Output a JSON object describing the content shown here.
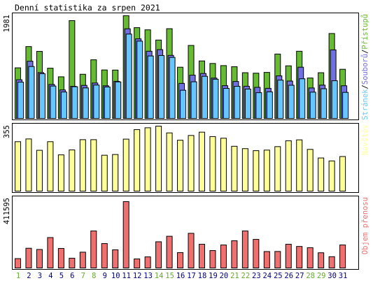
{
  "chart_data": {
    "title": "Denní statistika za srpen 2021",
    "days": [
      "1",
      "2",
      "3",
      "4",
      "5",
      "6",
      "7",
      "8",
      "9",
      "10",
      "11",
      "12",
      "13",
      "14",
      "15",
      "16",
      "17",
      "18",
      "19",
      "20",
      "21",
      "22",
      "23",
      "24",
      "25",
      "26",
      "27",
      "28",
      "29",
      "30",
      "31"
    ],
    "weekend_days": [
      1,
      7,
      8,
      14,
      15,
      21,
      22,
      28,
      29
    ],
    "colors": {
      "hits": "#66bb33",
      "files": "#7070e0",
      "pages": "#66c6ff",
      "visits": "#ffff99",
      "kbytes": "#f07070",
      "weekday_label": "#000080",
      "weekend_label": "#66aa33",
      "frame": "#000000"
    },
    "panels": [
      {
        "type": "bar",
        "name": "hits-files-pages",
        "ymax_label": "1981",
        "ymax": 1981,
        "legend": [
          {
            "text": "Přístupů",
            "color_key": "hits"
          },
          {
            "text": "Souborů",
            "color_key": "files"
          },
          {
            "text": "Stránek",
            "color_key": "pages"
          }
        ],
        "series": [
          {
            "name": "Přístupů",
            "values": [
              976,
              1386,
              1293,
              969,
              803,
              1887,
              852,
              1131,
              935,
              933,
              1981,
              1751,
              1709,
              1512,
              1731,
              988,
              1408,
              1109,
              1060,
              1019,
              998,
              882,
              873,
              888,
              1242,
              1015,
              1296,
              780,
              882,
              1638,
              948
            ]
          },
          {
            "name": "Souborů",
            "values": [
              746,
              1104,
              885,
              656,
              550,
              620,
              637,
              683,
              630,
              716,
              1729,
              1535,
              1296,
              1327,
              1216,
              676,
              835,
              867,
              778,
              632,
              713,
              621,
              600,
              581,
              821,
              721,
              988,
              588,
              642,
              1322,
              630
            ]
          },
          {
            "name": "Stránek",
            "values": [
              700,
              1001,
              862,
              625,
              510,
              612,
              589,
              644,
              607,
              705,
              1627,
              1491,
              1205,
              1214,
              1177,
              544,
              707,
              813,
              756,
              580,
              620,
              567,
              497,
              513,
              739,
              640,
              765,
              507,
              573,
              727,
              503
            ]
          }
        ]
      },
      {
        "type": "bar",
        "name": "visits",
        "ymax_label": "355",
        "ymax": 355,
        "legend": [
          {
            "text": "Návštěv",
            "color_key": "visits"
          }
        ],
        "series": [
          {
            "name": "Návštěv",
            "values": [
              270,
              285,
              223,
              270,
              198,
              225,
              281,
              281,
              196,
              200,
              284,
              336,
              346,
              355,
              318,
              278,
              304,
              322,
              298,
              289,
              245,
              232,
              221,
              224,
              243,
              275,
              280,
              228,
              181,
              165,
              189
            ]
          }
        ]
      },
      {
        "type": "bar",
        "name": "kbytes",
        "ymax_label": "411595",
        "ymax": 411595,
        "legend": [
          {
            "text": "Objem přenosu",
            "color_key": "kbytes"
          }
        ],
        "series": [
          {
            "name": "Objem přenosu",
            "values": [
              57930,
              122480,
              114780,
              188630,
              121180,
              60510,
              98050,
              229530,
              151440,
              112610,
              411595,
              55970,
              68840,
              162570,
              196630,
              95250,
              214920,
              147130,
              108020,
              142590,
              168760,
              229530,
              177330,
              101890,
              102430,
              147130,
              133550,
              125850,
              94440,
              69990,
              142590
            ]
          }
        ]
      }
    ]
  }
}
